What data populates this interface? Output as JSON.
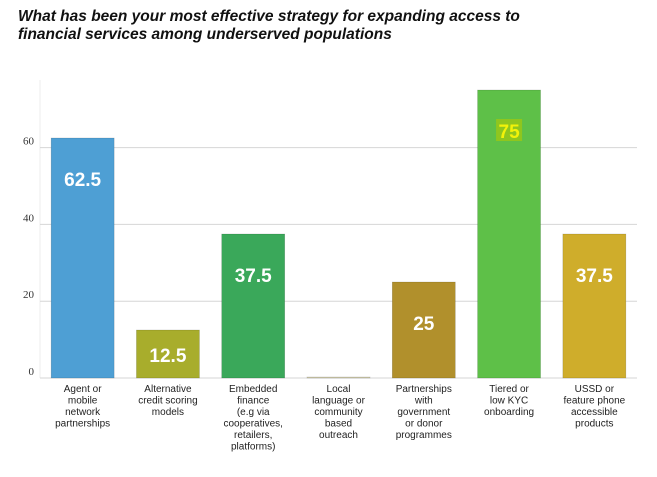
{
  "title": "What has been your most effective strategy for expanding access to financial services among underserved populations",
  "chart_data": {
    "type": "bar",
    "title": "What has been your most effective strategy for expanding access to financial services among underserved populations",
    "categories": [
      [
        "Agent or",
        "mobile",
        "network",
        "partnerships"
      ],
      [
        "Alternative",
        "credit scoring",
        "models"
      ],
      [
        "Embedded",
        "finance",
        "(e.g via",
        "cooperatives,",
        "retailers,",
        "platforms)"
      ],
      [
        "Local",
        "language or",
        "community",
        "based",
        "outreach"
      ],
      [
        "Partnerships",
        "with",
        "government",
        "or donor",
        "programmes"
      ],
      [
        "Tiered or",
        "low KYC",
        "onboarding"
      ],
      [
        "USSD or",
        "feature phone",
        "accessible",
        "products"
      ]
    ],
    "values": [
      62.5,
      12.5,
      37.5,
      0,
      25,
      75,
      37.5
    ],
    "data_labels": [
      "62.5",
      "12.5",
      "37.5",
      "",
      "25",
      "75",
      "37.5"
    ],
    "colors": [
      "#4e9fd4",
      "#a8ad2c",
      "#3aa85a",
      "#d7d2b0",
      "#b1902c",
      "#5ec048",
      "#cfad2b"
    ],
    "yticks": [
      0,
      20,
      40,
      60
    ],
    "ylim": [
      0,
      75
    ],
    "xlabel": "",
    "ylabel": "",
    "grid": true,
    "legend": "none"
  }
}
